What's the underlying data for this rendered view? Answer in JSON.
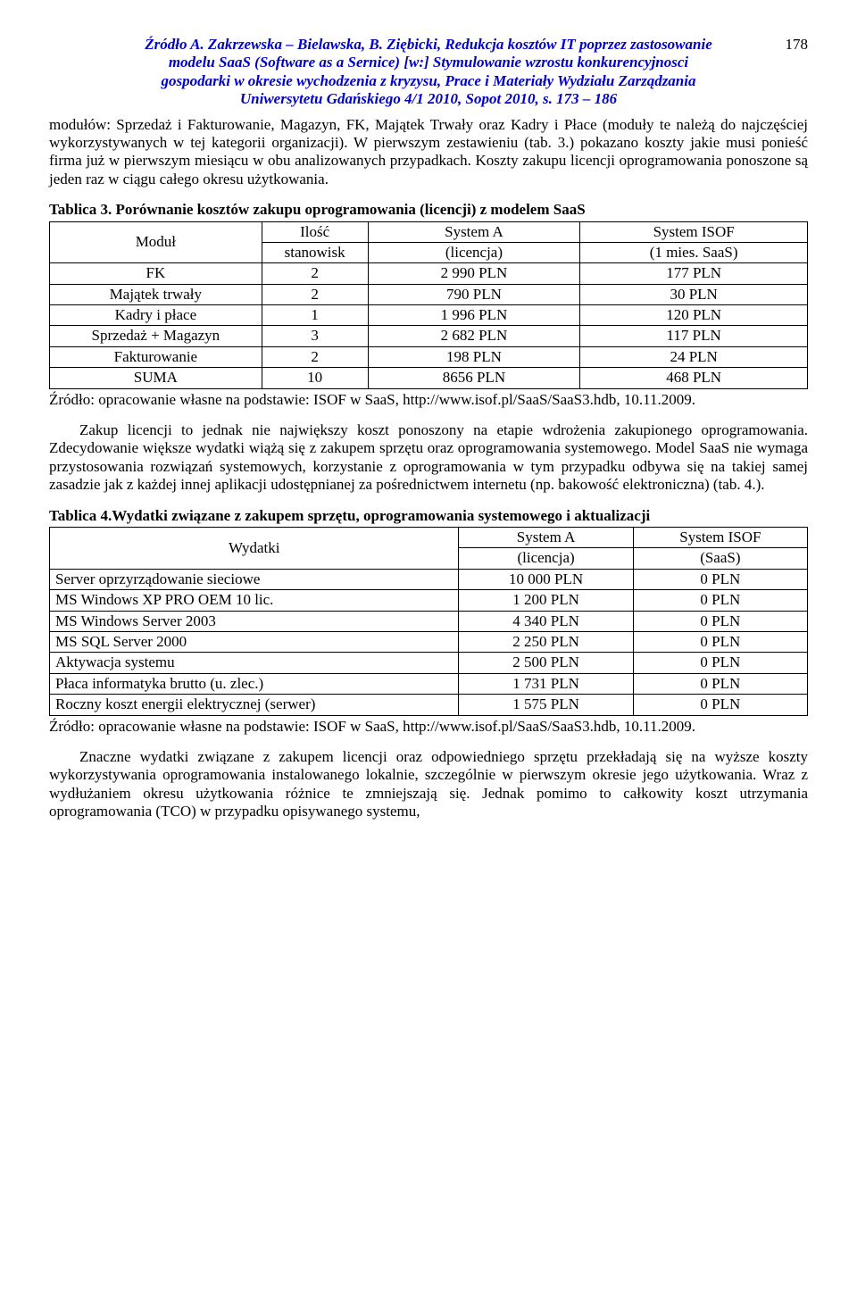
{
  "header": {
    "line1": "Źródło A. Zakrzewska – Bielawska, B. Ziębicki, Redukcja kosztów IT poprzez zastosowanie",
    "line2": "modelu SaaS (Software as a Sernice) [w:] Stymulowanie wzrostu konkurencyjnosci",
    "line3": "gospodarki w okresie wychodzenia z kryzysu, Prace i Materiały Wydziału Zarządzania",
    "line4": "Uniwersytetu Gdańskiego 4/1 2010, Sopot 2010, s. 173 – 186",
    "page": "178"
  },
  "para1": "modułów: Sprzedaż i Fakturowanie, Magazyn, FK, Majątek Trwały oraz Kadry i Płace (moduły te należą do najczęściej wykorzystywanych w tej kategorii organizacji). W pierwszym zestawieniu (tab. 3.) pokazano koszty jakie musi ponieść firma już w pierwszym miesiącu w obu analizowanych przypadkach. Koszty zakupu licencji oprogramowania ponoszone są jeden raz w ciągu całego okresu użytkowania.",
  "table3": {
    "caption": "Tablica 3. Porównanie kosztów zakupu oprogramowania (licencji) z modelem SaaS",
    "head": {
      "c1a": "Moduł",
      "c2a": "Ilość",
      "c2b": "stanowisk",
      "c3a": "System A",
      "c3b": "(licencja)",
      "c4a": "System ISOF",
      "c4b": "(1 mies. SaaS)"
    },
    "rows": [
      {
        "c1": "FK",
        "c2": "2",
        "c3": "2 990 PLN",
        "c4": "177 PLN"
      },
      {
        "c1": "Majątek trwały",
        "c2": "2",
        "c3": "790 PLN",
        "c4": "30 PLN"
      },
      {
        "c1": "Kadry i płace",
        "c2": "1",
        "c3": "1 996 PLN",
        "c4": "120 PLN"
      },
      {
        "c1": "Sprzedaż + Magazyn",
        "c2": "3",
        "c3": "2 682 PLN",
        "c4": "117 PLN"
      },
      {
        "c1": "Fakturowanie",
        "c2": "2",
        "c3": "198 PLN",
        "c4": "24 PLN"
      }
    ],
    "sum": {
      "c1": "SUMA",
      "c2": "10",
      "c3": "8656 PLN",
      "c4": "468 PLN"
    },
    "source": "Źródło: opracowanie własne na podstawie: ISOF w SaaS, http://www.isof.pl/SaaS/SaaS3.hdb, 10.11.2009."
  },
  "para2": "Zakup licencji to jednak nie największy koszt ponoszony na etapie wdrożenia zakupionego oprogramowania. Zdecydowanie większe wydatki wiążą się z zakupem sprzętu oraz oprogramowania systemowego. Model SaaS nie wymaga przystosowania rozwiązań systemowych, korzystanie z oprogramowania w tym przypadku odbywa się na takiej samej zasadzie jak z każdej innej aplikacji udostępnianej za pośrednictwem internetu (np. bakowość elektroniczna) (tab. 4.).",
  "table4": {
    "caption": "Tablica 4.Wydatki związane z zakupem sprzętu, oprogramowania systemowego i aktualizacji",
    "head": {
      "c1": "Wydatki",
      "c2a": "System A",
      "c2b": "(licencja)",
      "c3a": "System ISOF",
      "c3b": "(SaaS)"
    },
    "rows": [
      {
        "c1": "Server oprzyrządowanie sieciowe",
        "c2": "10 000 PLN",
        "c3": "0 PLN"
      },
      {
        "c1": "MS Windows XP PRO OEM 10 lic.",
        "c2": "1 200 PLN",
        "c3": "0 PLN"
      },
      {
        "c1": "MS Windows Server 2003",
        "c2": "4 340 PLN",
        "c3": "0 PLN"
      },
      {
        "c1": "MS SQL Server 2000",
        "c2": "2 250 PLN",
        "c3": "0 PLN"
      },
      {
        "c1": "Aktywacja systemu",
        "c2": "2 500 PLN",
        "c3": "0 PLN"
      },
      {
        "c1": "Płaca informatyka brutto (u. zlec.)",
        "c2": "1 731 PLN",
        "c3": "0 PLN"
      },
      {
        "c1": "Roczny koszt energii elektrycznej (serwer)",
        "c2": "1 575 PLN",
        "c3": "0 PLN"
      }
    ],
    "source": "Źródło: opracowanie własne na podstawie: ISOF w SaaS, http://www.isof.pl/SaaS/SaaS3.hdb, 10.11.2009."
  },
  "para3": "Znaczne wydatki związane z zakupem licencji oraz odpowiedniego sprzętu przekładają się na wyższe koszty wykorzystywania oprogramowania instalowanego lokalnie, szczególnie w pierwszym okresie jego użytkowania. Wraz z wydłużaniem okresu użytkowania różnice te zmniejszają się. Jednak pomimo to całkowity koszt utrzymania oprogramowania (TCO) w przypadku opisywanego systemu,"
}
